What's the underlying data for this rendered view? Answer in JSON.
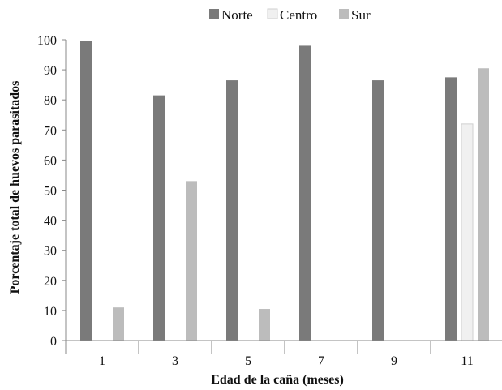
{
  "chart_data": {
    "type": "bar",
    "xlabel": "Edad de la caña (meses)",
    "ylabel": "Porcentaje total de huevos parasitados",
    "categories": [
      "1",
      "3",
      "5",
      "7",
      "9",
      "11"
    ],
    "ylim": [
      0,
      100
    ],
    "yticks": [
      0,
      10,
      20,
      30,
      40,
      50,
      60,
      70,
      80,
      90,
      100
    ],
    "grid": false,
    "legend_position": "top-center",
    "series": [
      {
        "name": "Norte",
        "color": "#7a7a7a",
        "values": [
          99.5,
          81.5,
          86.5,
          98,
          86.5,
          87.5
        ]
      },
      {
        "name": "Centro",
        "color": "#f0f0f0",
        "values": [
          0,
          0,
          0,
          0,
          0,
          72
        ]
      },
      {
        "name": "Sur",
        "color": "#bcbcbc",
        "values": [
          11,
          53,
          10.5,
          0,
          0,
          90.5
        ]
      }
    ]
  }
}
